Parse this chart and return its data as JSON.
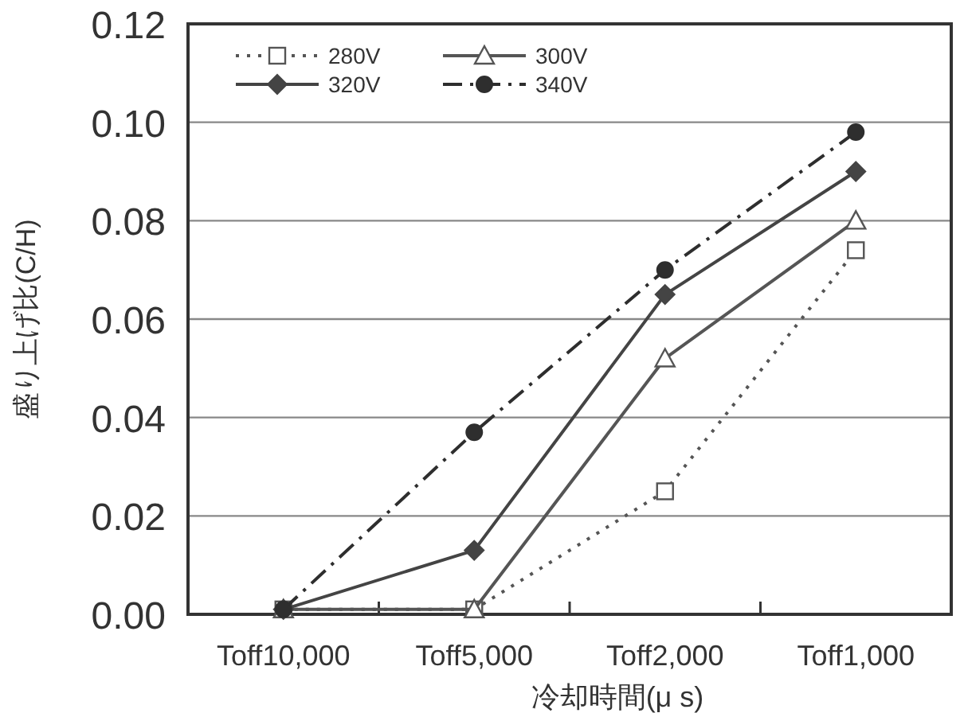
{
  "chart_data": {
    "type": "line",
    "xlabel": "冷却時間(μ s)",
    "ylabel": "盛り上げ比(C/H)",
    "categories": [
      "Toff10,000",
      "Toff5,000",
      "Toff2,000",
      "Toff1,000"
    ],
    "series": [
      {
        "name": "280V",
        "color": "#555555",
        "marker": "square",
        "line_style": "dotted",
        "values": [
          0.001,
          0.001,
          0.025,
          0.074
        ]
      },
      {
        "name": "300V",
        "color": "#555555",
        "marker": "triangle",
        "line_style": "solid",
        "values": [
          0.001,
          0.001,
          0.052,
          0.08
        ]
      },
      {
        "name": "320V",
        "color": "#444444",
        "marker": "diamond",
        "line_style": "solid",
        "values": [
          0.001,
          0.013,
          0.065,
          0.09
        ]
      },
      {
        "name": "340V",
        "color": "#2e2e2e",
        "marker": "circle",
        "line_style": "dashed",
        "values": [
          0.001,
          0.037,
          0.07,
          0.098
        ]
      }
    ],
    "ylim": [
      0,
      0.12
    ],
    "yticks": [
      {
        "value": 0,
        "label": "0.00"
      },
      {
        "value": 0.02,
        "label": "0.02"
      },
      {
        "value": 0.04,
        "label": "0.04"
      },
      {
        "value": 0.06,
        "label": "0.06"
      },
      {
        "value": 0.08,
        "label": "0.08"
      },
      {
        "value": 0.1,
        "label": "0.10"
      },
      {
        "value": 0.12,
        "label": "0.12"
      }
    ],
    "grid": "y",
    "legend": "top left"
  }
}
